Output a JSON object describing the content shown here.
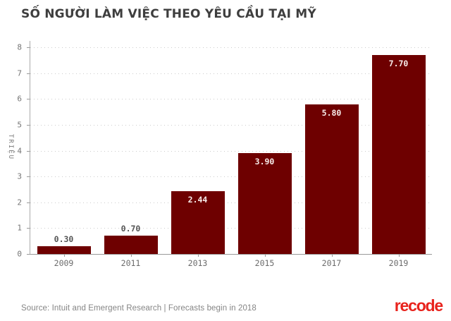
{
  "title": "SỐ NGƯỜI LÀM VIỆC THEO YÊU CẦU TẠI MỸ",
  "chart_data": {
    "type": "bar",
    "categories": [
      "2009",
      "2011",
      "2013",
      "2015",
      "2017",
      "2019"
    ],
    "values": [
      0.3,
      0.7,
      2.44,
      3.9,
      5.8,
      7.7
    ],
    "value_labels": [
      "0.30",
      "0.70",
      "2.44",
      "3.90",
      "5.80",
      "7.70"
    ],
    "title": "SỐ NGƯỜI LÀM VIỆC THEO YÊU CẦU TẠI MỸ",
    "xlabel": "",
    "ylabel": "TRIỆU",
    "ylim": [
      0,
      8
    ],
    "ytick_step": 1,
    "yticks": [
      0,
      1,
      2,
      3,
      4,
      5,
      6,
      7,
      8
    ],
    "grid": "horizontal-dotted",
    "legend": "none",
    "bar_color": "#6e0000",
    "label_color_inside": "#f7ecea",
    "label_color_outside": "#555555",
    "axis_color": "#999999",
    "gridline_color": "#cccccc"
  },
  "footer": {
    "source": "Source: Intuit and Emergent Research | Forecasts begin in 2018",
    "logo": "recode",
    "logo_color": "#e8231d"
  }
}
